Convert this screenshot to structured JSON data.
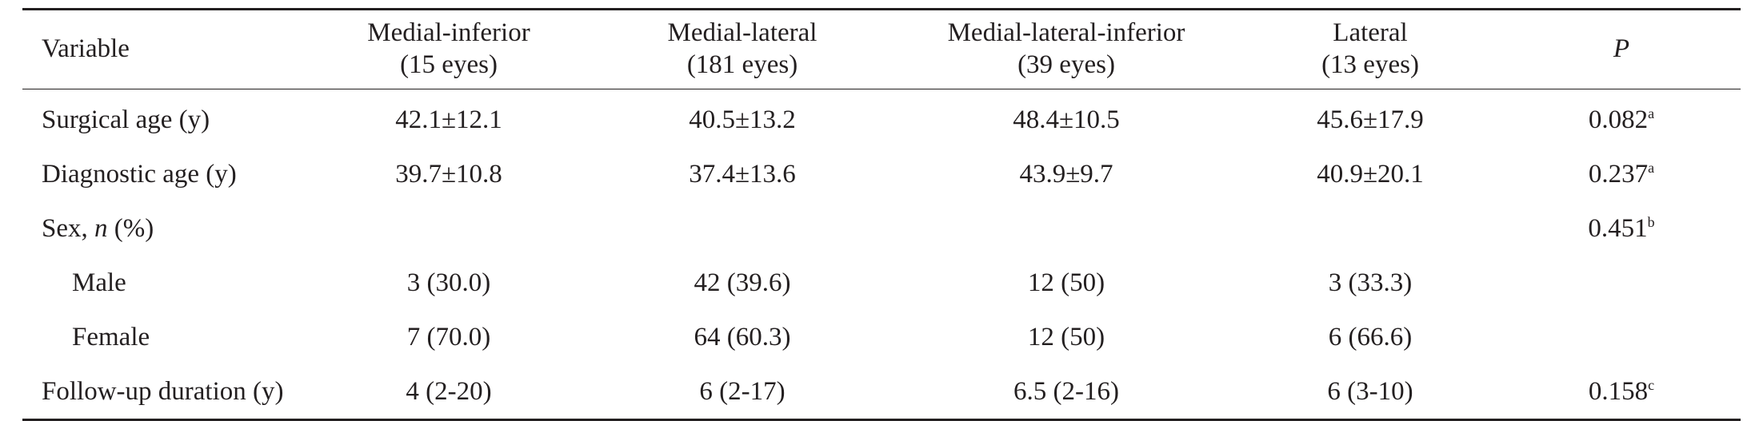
{
  "table": {
    "headers": [
      {
        "line1": "Variable",
        "line2": ""
      },
      {
        "line1": "Medial-inferior",
        "line2": "(15 eyes)"
      },
      {
        "line1": "Medial-lateral",
        "line2": "(181 eyes)"
      },
      {
        "line1": "Medial-lateral-inferior",
        "line2": "(39 eyes)"
      },
      {
        "line1": "Lateral",
        "line2": "(13 eyes)"
      },
      {
        "line1": "P",
        "line2": ""
      }
    ],
    "rows": [
      {
        "label": "Surgical age (y)",
        "cells": [
          "42.1±12.1",
          "40.5±13.2",
          "48.4±10.5",
          "45.6±17.9"
        ],
        "p": "0.082",
        "p_sup": "a"
      },
      {
        "label": "Diagnostic age (y)",
        "cells": [
          "39.7±10.8",
          "37.4±13.6",
          "43.9±9.7",
          "40.9±20.1"
        ],
        "p": "0.237",
        "p_sup": "a"
      },
      {
        "label_prefix": "Sex, ",
        "label_italic": "n",
        "label_suffix": " (%)",
        "cells": [
          "",
          "",
          "",
          ""
        ],
        "p": "0.451",
        "p_sup": "b"
      },
      {
        "label": "Male",
        "cells": [
          "3 (30.0)",
          "42 (39.6)",
          "12 (50)",
          "3 (33.3)"
        ],
        "p": "",
        "p_sup": ""
      },
      {
        "label": "Female",
        "cells": [
          "7 (70.0)",
          "64 (60.3)",
          "12 (50)",
          "6 (66.6)"
        ],
        "p": "",
        "p_sup": ""
      },
      {
        "label": "Follow-up duration (y)",
        "cells": [
          "4 (2-20)",
          "6 (2-17)",
          "6.5 (2-16)",
          "6 (3-10)"
        ],
        "p": "0.158",
        "p_sup": "c"
      }
    ]
  }
}
